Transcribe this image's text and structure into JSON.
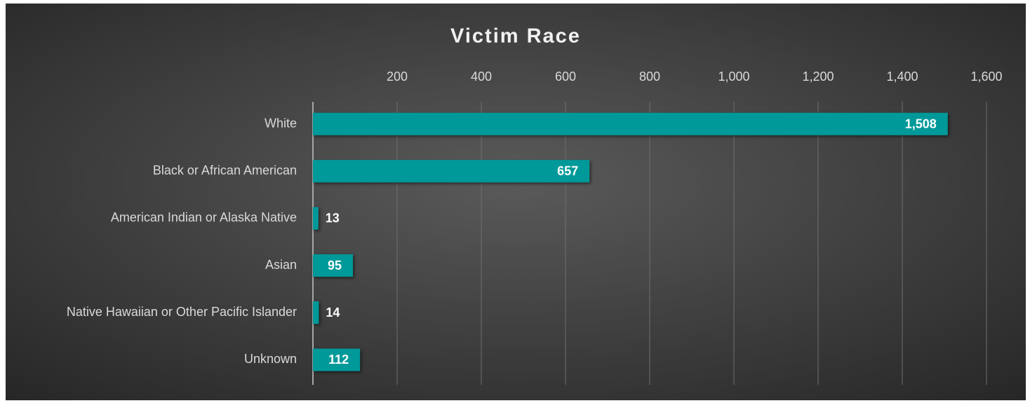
{
  "chart_data": {
    "type": "bar",
    "orientation": "horizontal",
    "title": "Victim Race",
    "categories": [
      "White",
      "Black or African American",
      "American Indian or Alaska Native",
      "Asian",
      "Native Hawaiian or Other Pacific Islander",
      "Unknown"
    ],
    "values": [
      1508,
      657,
      13,
      95,
      14,
      112
    ],
    "value_labels": [
      "1,508",
      "657",
      "13",
      "95",
      "14",
      "112"
    ],
    "color": "#009999",
    "xlim": [
      0,
      1600
    ],
    "xticks": [
      200,
      400,
      600,
      800,
      {
        "value": 1000,
        "label": "1,000"
      },
      {
        "value": 1200,
        "label": "1,200"
      },
      {
        "value": 1400,
        "label": "1,400"
      },
      {
        "value": 1600,
        "label": "1,600"
      }
    ],
    "grid": true
  }
}
